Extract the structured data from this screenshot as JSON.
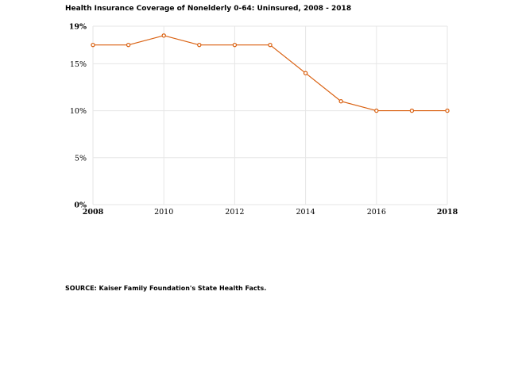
{
  "chart_data": {
    "type": "line",
    "title": "Health Insurance Coverage of Nonelderly 0-64: Uninsured, 2008 - 2018",
    "source": "SOURCE: Kaiser Family Foundation's State Health Facts.",
    "x": [
      2008,
      2009,
      2010,
      2011,
      2012,
      2013,
      2014,
      2015,
      2016,
      2017,
      2018
    ],
    "series": [
      {
        "values": [
          17,
          17,
          18,
          17,
          17,
          17,
          14,
          11,
          10,
          10,
          10
        ],
        "color": "#d95f0e"
      }
    ],
    "xlim": [
      2008,
      2018
    ],
    "ylim": [
      0,
      19
    ],
    "y_ticks": [
      {
        "value": 0,
        "label": "0%",
        "bold": true
      },
      {
        "value": 5,
        "label": "5%",
        "bold": false
      },
      {
        "value": 10,
        "label": "10%",
        "bold": false
      },
      {
        "value": 15,
        "label": "15%",
        "bold": false
      },
      {
        "value": 19,
        "label": "19%",
        "bold": true
      }
    ],
    "x_ticks": [
      {
        "value": 2008,
        "label": "2008",
        "bold": true
      },
      {
        "value": 2010,
        "label": "2010",
        "bold": false
      },
      {
        "value": 2012,
        "label": "2012",
        "bold": false
      },
      {
        "value": 2014,
        "label": "2014",
        "bold": false
      },
      {
        "value": 2016,
        "label": "2016",
        "bold": false
      },
      {
        "value": 2018,
        "label": "2018",
        "bold": true
      }
    ],
    "grid": true,
    "legend": "none"
  }
}
